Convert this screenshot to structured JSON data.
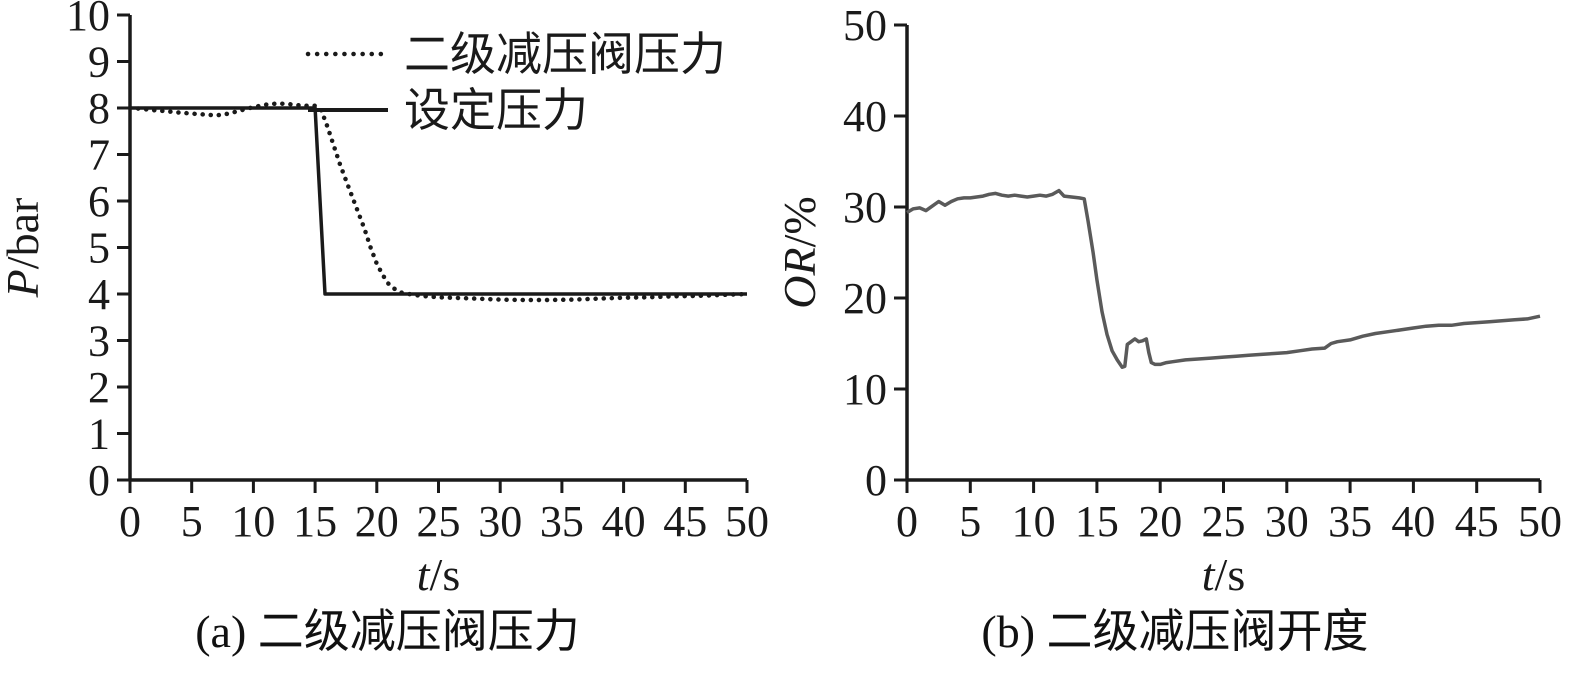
{
  "figure": {
    "background": "#ffffff",
    "axis_color": "#1a1a1a"
  },
  "chart_data": [
    {
      "id": "chart-a",
      "type": "line",
      "title": "",
      "caption": "(a) 二级减压阀压力",
      "xlabel": [
        {
          "t": "t",
          "i": true
        },
        {
          "t": "/s",
          "i": false
        }
      ],
      "ylabel": [
        {
          "t": "P",
          "i": true
        },
        {
          "t": "/bar",
          "i": false
        }
      ],
      "xlim": [
        0,
        50
      ],
      "ylim": [
        0,
        10
      ],
      "xticks": [
        0,
        5,
        10,
        15,
        20,
        25,
        30,
        35,
        40,
        45,
        50
      ],
      "yticks": [
        0,
        1,
        2,
        3,
        4,
        5,
        6,
        7,
        8,
        9,
        10
      ],
      "grid": false,
      "legend": {
        "show": true,
        "position": "top-inside"
      },
      "series": [
        {
          "name": "二级减压阀压力",
          "style": "dotted",
          "color": "#1a1a1a",
          "points": [
            [
              0,
              8.0
            ],
            [
              1,
              7.98
            ],
            [
              2,
              7.95
            ],
            [
              3,
              7.93
            ],
            [
              4,
              7.9
            ],
            [
              5,
              7.88
            ],
            [
              6,
              7.86
            ],
            [
              7,
              7.84
            ],
            [
              8,
              7.88
            ],
            [
              9,
              7.95
            ],
            [
              10,
              8.02
            ],
            [
              11,
              8.07
            ],
            [
              12,
              8.1
            ],
            [
              13,
              8.08
            ],
            [
              14,
              8.05
            ],
            [
              15,
              8.05
            ],
            [
              15.5,
              7.95
            ],
            [
              16,
              7.6
            ],
            [
              16.5,
              7.2
            ],
            [
              17,
              6.8
            ],
            [
              17.5,
              6.45
            ],
            [
              18,
              6.1
            ],
            [
              18.5,
              5.75
            ],
            [
              19,
              5.4
            ],
            [
              19.5,
              5.0
            ],
            [
              20,
              4.65
            ],
            [
              20.5,
              4.4
            ],
            [
              21,
              4.2
            ],
            [
              21.5,
              4.1
            ],
            [
              22,
              4.03
            ],
            [
              23,
              3.98
            ],
            [
              24,
              3.95
            ],
            [
              25,
              3.93
            ],
            [
              26,
              3.92
            ],
            [
              28,
              3.9
            ],
            [
              30,
              3.88
            ],
            [
              32,
              3.87
            ],
            [
              34,
              3.87
            ],
            [
              36,
              3.88
            ],
            [
              38,
              3.9
            ],
            [
              40,
              3.92
            ],
            [
              42,
              3.93
            ],
            [
              44,
              3.95
            ],
            [
              46,
              3.96
            ],
            [
              48,
              3.98
            ],
            [
              50,
              4.0
            ]
          ]
        },
        {
          "name": "设定压力",
          "style": "solid",
          "color": "#1a1a1a",
          "points": [
            [
              0,
              8
            ],
            [
              15,
              8
            ],
            [
              15.8,
              4
            ],
            [
              50,
              4
            ]
          ]
        }
      ]
    },
    {
      "id": "chart-b",
      "type": "line",
      "title": "",
      "caption": "(b) 二级减压阀开度",
      "xlabel": [
        {
          "t": "t",
          "i": true
        },
        {
          "t": "/s",
          "i": false
        }
      ],
      "ylabel": [
        {
          "t": "OR",
          "i": true
        },
        {
          "t": "/%",
          "i": false
        }
      ],
      "xlim": [
        0,
        50
      ],
      "ylim": [
        0,
        50
      ],
      "xticks": [
        0,
        5,
        10,
        15,
        20,
        25,
        30,
        35,
        40,
        45,
        50
      ],
      "yticks": [
        0,
        10,
        20,
        30,
        40,
        50
      ],
      "grid": false,
      "legend": {
        "show": false,
        "position": "none"
      },
      "series": [
        {
          "name": "二级减压阀开度",
          "style": "solid",
          "color": "#5a5a5a",
          "points": [
            [
              0,
              29.4
            ],
            [
              0.5,
              29.8
            ],
            [
              1,
              29.9
            ],
            [
              1.5,
              29.6
            ],
            [
              2,
              30.1
            ],
            [
              2.5,
              30.6
            ],
            [
              3,
              30.2
            ],
            [
              3.5,
              30.6
            ],
            [
              4,
              30.9
            ],
            [
              4.5,
              31.0
            ],
            [
              5,
              31.0
            ],
            [
              5.5,
              31.1
            ],
            [
              6,
              31.2
            ],
            [
              6.5,
              31.4
            ],
            [
              7,
              31.5
            ],
            [
              7.5,
              31.3
            ],
            [
              8,
              31.2
            ],
            [
              8.5,
              31.3
            ],
            [
              9,
              31.2
            ],
            [
              9.5,
              31.1
            ],
            [
              10,
              31.2
            ],
            [
              10.5,
              31.3
            ],
            [
              11,
              31.2
            ],
            [
              11.5,
              31.4
            ],
            [
              12,
              31.8
            ],
            [
              12.4,
              31.2
            ],
            [
              13,
              31.1
            ],
            [
              13.6,
              31.0
            ],
            [
              14,
              30.9
            ],
            [
              14.3,
              28.5
            ],
            [
              14.7,
              25.0
            ],
            [
              15,
              22.0
            ],
            [
              15.4,
              18.5
            ],
            [
              15.8,
              16.0
            ],
            [
              16.2,
              14.2
            ],
            [
              16.6,
              13.2
            ],
            [
              17,
              12.4
            ],
            [
              17.2,
              12.5
            ],
            [
              17.4,
              14.9
            ],
            [
              17.7,
              15.2
            ],
            [
              18,
              15.5
            ],
            [
              18.3,
              15.2
            ],
            [
              18.6,
              15.3
            ],
            [
              18.9,
              15.5
            ],
            [
              19.1,
              14.0
            ],
            [
              19.3,
              12.9
            ],
            [
              19.6,
              12.7
            ],
            [
              20,
              12.7
            ],
            [
              20.5,
              12.9
            ],
            [
              21,
              13.0
            ],
            [
              22,
              13.2
            ],
            [
              23,
              13.3
            ],
            [
              24,
              13.4
            ],
            [
              25,
              13.5
            ],
            [
              26,
              13.6
            ],
            [
              27,
              13.7
            ],
            [
              28,
              13.8
            ],
            [
              29,
              13.9
            ],
            [
              30,
              14.0
            ],
            [
              31,
              14.2
            ],
            [
              32,
              14.4
            ],
            [
              33,
              14.5
            ],
            [
              33.5,
              15.0
            ],
            [
              34,
              15.2
            ],
            [
              35,
              15.4
            ],
            [
              36,
              15.8
            ],
            [
              37,
              16.1
            ],
            [
              38,
              16.3
            ],
            [
              39,
              16.5
            ],
            [
              40,
              16.7
            ],
            [
              41,
              16.9
            ],
            [
              42,
              17.0
            ],
            [
              43,
              17.0
            ],
            [
              44,
              17.2
            ],
            [
              45,
              17.3
            ],
            [
              46,
              17.4
            ],
            [
              47,
              17.5
            ],
            [
              48,
              17.6
            ],
            [
              49,
              17.7
            ],
            [
              50,
              18.0
            ]
          ]
        }
      ]
    }
  ]
}
